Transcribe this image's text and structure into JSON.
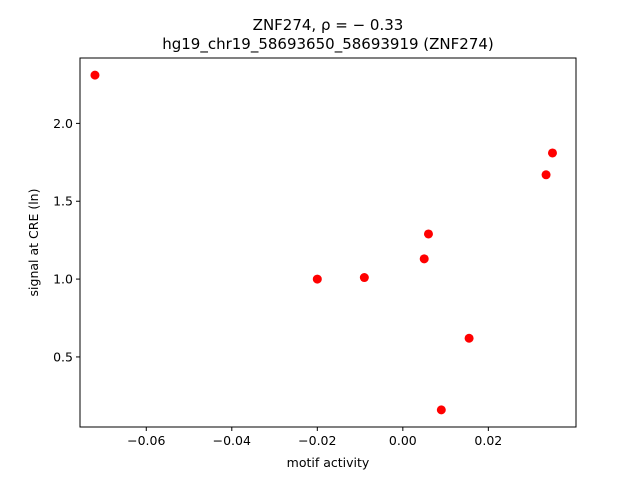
{
  "chart_data": {
    "type": "scatter",
    "title_line1": "ZNF274, ρ = − 0.33",
    "title_line2": "hg19_chr19_58693650_58693919 (ZNF274)",
    "xlabel": "motif activity",
    "ylabel": "signal at CRE (ln)",
    "xlim": [
      -0.0755,
      0.0405
    ],
    "ylim": [
      0.05,
      2.42
    ],
    "x_ticks": [
      -0.06,
      -0.04,
      -0.02,
      0.0,
      0.02
    ],
    "x_tick_labels": [
      "−0.06",
      "−0.04",
      "−0.02",
      "0.00",
      "0.02"
    ],
    "y_ticks": [
      0.5,
      1.0,
      1.5,
      2.0
    ],
    "y_tick_labels": [
      "0.5",
      "1.0",
      "1.5",
      "2.0"
    ],
    "grid": false,
    "legend": "none",
    "marker_color": "#ff0000",
    "points": [
      {
        "x": -0.072,
        "y": 2.31
      },
      {
        "x": -0.02,
        "y": 1.0
      },
      {
        "x": -0.009,
        "y": 1.01
      },
      {
        "x": 0.005,
        "y": 1.13
      },
      {
        "x": 0.006,
        "y": 1.29
      },
      {
        "x": 0.009,
        "y": 0.16
      },
      {
        "x": 0.0155,
        "y": 0.62
      },
      {
        "x": 0.0335,
        "y": 1.67
      },
      {
        "x": 0.035,
        "y": 1.81
      }
    ]
  }
}
